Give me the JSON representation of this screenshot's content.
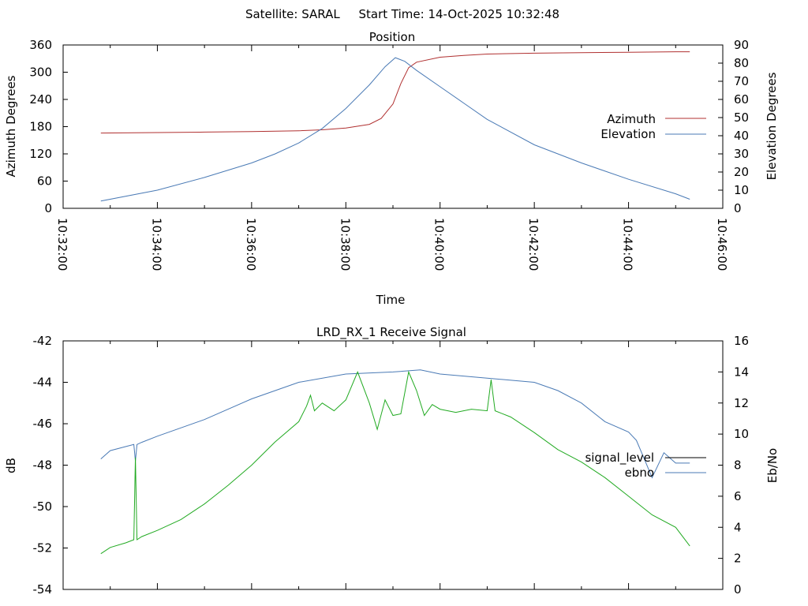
{
  "header": {
    "title": "Satellite: SARAL     Start Time: 14-Oct-2025 10:32:48"
  },
  "chart_data": [
    {
      "type": "line",
      "title": "Position",
      "xlabel": "Time",
      "ylabel": "Azimuth Degrees",
      "y2label": "Elevation Degrees",
      "x_ticks": [
        "10:32:00",
        "10:34:00",
        "10:36:00",
        "10:38:00",
        "10:40:00",
        "10:42:00",
        "10:44:00",
        "10:46:00"
      ],
      "xlim": [
        "10:32:00",
        "10:46:00"
      ],
      "ylim": [
        0,
        360
      ],
      "y_ticks": [
        0,
        60,
        120,
        180,
        240,
        300,
        360
      ],
      "y2lim": [
        0,
        90
      ],
      "y2_ticks": [
        0,
        10,
        20,
        30,
        40,
        50,
        60,
        70,
        80,
        90
      ],
      "legend_position": "right",
      "grid": false,
      "series": [
        {
          "name": "Azimuth",
          "axis": "left",
          "color": "#b03030",
          "x": [
            "10:32:48",
            "10:34:00",
            "10:35:00",
            "10:36:00",
            "10:37:00",
            "10:37:30",
            "10:38:00",
            "10:38:30",
            "10:38:45",
            "10:39:00",
            "10:39:10",
            "10:39:20",
            "10:39:30",
            "10:40:00",
            "10:40:30",
            "10:41:00",
            "10:42:00",
            "10:43:00",
            "10:44:00",
            "10:45:00",
            "10:45:18"
          ],
          "values": [
            166,
            167,
            168,
            169,
            171,
            173,
            177,
            185,
            198,
            230,
            275,
            310,
            322,
            333,
            337,
            340,
            342,
            343,
            344,
            345,
            345
          ]
        },
        {
          "name": "Elevation",
          "axis": "right",
          "color": "#4a7ab5",
          "x": [
            "10:32:48",
            "10:34:00",
            "10:35:00",
            "10:36:00",
            "10:36:30",
            "10:37:00",
            "10:37:30",
            "10:38:00",
            "10:38:30",
            "10:38:50",
            "10:39:03",
            "10:39:15",
            "10:39:30",
            "10:40:00",
            "10:40:30",
            "10:41:00",
            "10:42:00",
            "10:43:00",
            "10:44:00",
            "10:45:00",
            "10:45:18"
          ],
          "values": [
            4,
            10,
            17,
            25,
            30,
            36,
            44,
            55,
            68,
            78,
            83,
            81,
            76,
            67,
            58,
            49,
            35,
            25,
            16,
            8,
            5
          ]
        }
      ]
    },
    {
      "type": "line",
      "title": "LRD_RX_1 Receive Signal",
      "xlabel": "",
      "ylabel": "dB",
      "y2label": "Eb/No",
      "xlim": [
        "10:32:00",
        "10:46:00"
      ],
      "ylim": [
        -54,
        -42
      ],
      "y_ticks": [
        -54,
        -52,
        -50,
        -48,
        -46,
        -44,
        -42
      ],
      "y2lim": [
        0,
        16
      ],
      "y2_ticks": [
        0,
        2,
        4,
        6,
        8,
        10,
        12,
        14,
        16
      ],
      "legend_position": "right",
      "grid": false,
      "series": [
        {
          "name": "signal_level",
          "axis": "left",
          "color": "#4a7ab5",
          "x": [
            "10:32:48",
            "10:33:00",
            "10:33:20",
            "10:33:30",
            "10:33:32",
            "10:33:34",
            "10:33:40",
            "10:34:00",
            "10:35:00",
            "10:36:00",
            "10:37:00",
            "10:38:00",
            "10:39:00",
            "10:39:35",
            "10:40:00",
            "10:41:00",
            "10:42:00",
            "10:42:30",
            "10:43:00",
            "10:43:30",
            "10:44:00",
            "10:44:10",
            "10:44:20",
            "10:44:30",
            "10:44:45",
            "10:45:00",
            "10:45:18"
          ],
          "values": [
            -47.7,
            -47.3,
            -47.1,
            -47.0,
            -47.8,
            -47.0,
            -46.9,
            -46.6,
            -45.8,
            -44.8,
            -44.0,
            -43.6,
            -43.5,
            -43.4,
            -43.6,
            -43.8,
            -44.0,
            -44.4,
            -45.0,
            -45.9,
            -46.4,
            -46.8,
            -47.7,
            -48.6,
            -47.4,
            -47.9,
            -47.9
          ]
        },
        {
          "name": "ebno",
          "axis": "right",
          "color": "#22aa22",
          "x": [
            "10:32:48",
            "10:33:00",
            "10:33:20",
            "10:33:30",
            "10:33:32",
            "10:33:34",
            "10:33:40",
            "10:34:00",
            "10:34:30",
            "10:35:00",
            "10:35:30",
            "10:36:00",
            "10:36:30",
            "10:37:00",
            "10:37:10",
            "10:37:15",
            "10:37:20",
            "10:37:30",
            "10:37:45",
            "10:38:00",
            "10:38:15",
            "10:38:30",
            "10:38:40",
            "10:38:50",
            "10:39:00",
            "10:39:10",
            "10:39:20",
            "10:39:30",
            "10:39:40",
            "10:39:50",
            "10:40:00",
            "10:40:20",
            "10:40:40",
            "10:41:00",
            "10:41:05",
            "10:41:10",
            "10:41:30",
            "10:42:00",
            "10:42:30",
            "10:43:00",
            "10:43:30",
            "10:44:00",
            "10:44:30",
            "10:45:00",
            "10:45:18"
          ],
          "values": [
            2.3,
            2.7,
            3.0,
            3.2,
            8.5,
            3.2,
            3.4,
            3.8,
            4.5,
            5.5,
            6.7,
            8.0,
            9.5,
            10.8,
            11.8,
            12.5,
            11.5,
            12.0,
            11.5,
            12.2,
            14.0,
            12.0,
            10.3,
            12.2,
            11.2,
            11.3,
            14.0,
            12.8,
            11.2,
            11.9,
            11.6,
            11.4,
            11.6,
            11.5,
            13.5,
            11.5,
            11.1,
            10.1,
            9.0,
            8.2,
            7.2,
            6.0,
            4.8,
            4.0,
            2.8
          ]
        }
      ]
    }
  ]
}
